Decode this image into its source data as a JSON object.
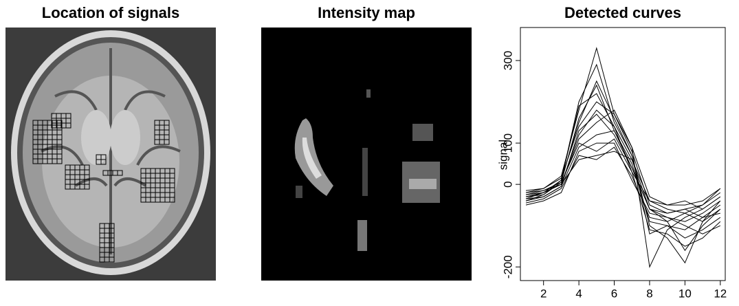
{
  "panels": [
    {
      "title": "Location of signals"
    },
    {
      "title": "Intensity map"
    }
  ],
  "chart_data": {
    "type": "line",
    "title": "Detected curves",
    "y_label": "signal",
    "color": "#000000",
    "x": [
      1,
      2,
      3,
      4,
      5,
      6,
      7,
      8,
      9,
      10,
      11,
      12
    ],
    "xlim": [
      0.69,
      12.28
    ],
    "xticks": [
      2,
      4,
      6,
      8,
      10,
      12
    ],
    "ylim": [
      -233,
      380
    ],
    "yticks": [
      -200,
      0,
      100,
      300
    ],
    "grid": false,
    "series": [
      {
        "values": [
          -30,
          -20,
          0,
          120,
          180,
          140,
          60,
          -60,
          -80,
          -90,
          -70,
          -40
        ]
      },
      {
        "values": [
          -40,
          -25,
          10,
          150,
          250,
          160,
          70,
          -120,
          -100,
          -110,
          -80,
          -50
        ]
      },
      {
        "values": [
          -20,
          -10,
          20,
          180,
          330,
          170,
          90,
          -200,
          -110,
          -80,
          -60,
          -30
        ]
      },
      {
        "values": [
          -35,
          -30,
          -5,
          90,
          120,
          130,
          40,
          -60,
          -70,
          -60,
          -80,
          -70
        ]
      },
      {
        "values": [
          -25,
          -15,
          5,
          100,
          80,
          110,
          30,
          -40,
          -60,
          -70,
          -50,
          -20
        ]
      },
      {
        "values": [
          -45,
          -35,
          -10,
          70,
          60,
          90,
          20,
          -80,
          -90,
          -160,
          -100,
          -60
        ]
      },
      {
        "values": [
          -30,
          -20,
          10,
          200,
          290,
          150,
          70,
          -100,
          -130,
          -190,
          -90,
          -40
        ]
      },
      {
        "values": [
          -15,
          -10,
          15,
          140,
          200,
          170,
          80,
          -50,
          -70,
          -60,
          -50,
          -10
        ]
      },
      {
        "values": [
          -50,
          -40,
          -20,
          80,
          100,
          100,
          10,
          -70,
          -80,
          -100,
          -120,
          -100
        ]
      },
      {
        "values": [
          -20,
          -15,
          0,
          110,
          150,
          180,
          90,
          -30,
          -50,
          -40,
          -60,
          -30
        ]
      },
      {
        "values": [
          -30,
          -25,
          5,
          160,
          240,
          130,
          50,
          -90,
          -100,
          -130,
          -110,
          -80
        ]
      },
      {
        "values": [
          -40,
          -30,
          -5,
          130,
          170,
          120,
          40,
          -60,
          -90,
          -70,
          -90,
          -60
        ]
      },
      {
        "values": [
          -25,
          -20,
          0,
          60,
          70,
          80,
          60,
          -40,
          -50,
          -50,
          -40,
          -10
        ]
      },
      {
        "values": [
          -35,
          -20,
          10,
          190,
          220,
          140,
          30,
          -110,
          -120,
          -150,
          -130,
          -90
        ]
      }
    ]
  }
}
